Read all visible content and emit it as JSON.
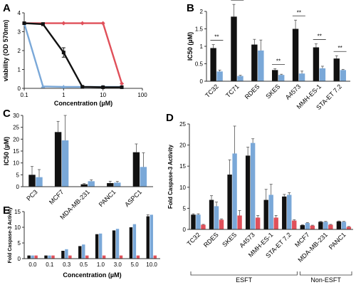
{
  "colors": {
    "black": "#111111",
    "blue": "#7aa8d8",
    "red": "#e0505a",
    "axis": "#333333",
    "errbar": "#555555"
  },
  "chart_data": [
    {
      "panel": "A",
      "type": "line",
      "xscale": "log",
      "xlabel": "Concentration (µM)",
      "ylabel": "viability (OD 570nm)",
      "xlim": [
        0.1,
        100
      ],
      "ylim": [
        0,
        4
      ],
      "xticks": [
        0.1,
        1,
        10,
        100
      ],
      "xtick_labels": [
        "0.1",
        "1",
        "10",
        "100"
      ],
      "yticks": [
        0,
        1,
        2,
        3,
        4
      ],
      "series": [
        {
          "color": "red",
          "x": [
            0.1,
            1,
            3,
            10,
            30
          ],
          "y": [
            3.45,
            3.45,
            3.45,
            3.45,
            0.25
          ],
          "marker": "diamond"
        },
        {
          "color": "blue",
          "x": [
            0.1,
            0.3,
            1,
            3,
            10,
            30
          ],
          "y": [
            3.45,
            0.1,
            0.08,
            0.08,
            0.08,
            0.08
          ],
          "marker": "triangle"
        },
        {
          "color": "black",
          "x": [
            0.1,
            0.3,
            1,
            3,
            10,
            30
          ],
          "y": [
            3.45,
            3.4,
            1.9,
            0.08,
            0.06,
            0.06
          ],
          "err": [
            0.05,
            0.08,
            0.25,
            0.05,
            0.03,
            0.03
          ],
          "marker": "square"
        }
      ]
    },
    {
      "panel": "B",
      "type": "bar",
      "ylabel": "IC50 (µM)",
      "ylim": [
        0,
        2
      ],
      "yticks": [
        0,
        0.5,
        1,
        1.5,
        2
      ],
      "ytick_labels": [
        "0",
        "0.5",
        "1",
        "1.5",
        "2"
      ],
      "categories": [
        "TC32",
        "TC71",
        "RDES",
        "SKES",
        "A4573",
        "MMH-ES-1",
        "STA-ET 7.2"
      ],
      "series": [
        {
          "color": "black",
          "values": [
            0.95,
            1.85,
            1.05,
            0.32,
            1.5,
            0.97,
            0.65
          ],
          "err": [
            0.1,
            0.35,
            0.15,
            0.04,
            0.25,
            0.1,
            0.08
          ]
        },
        {
          "color": "blue",
          "values": [
            0.28,
            0.15,
            0.88,
            0.18,
            0.22,
            0.37,
            0.32
          ],
          "err": [
            0.04,
            0.02,
            0.3,
            0.02,
            0.07,
            0.06,
            0.02
          ]
        }
      ],
      "significance": [
        "**",
        "**",
        "",
        "**",
        "**",
        "**",
        "**"
      ]
    },
    {
      "panel": "C",
      "type": "bar",
      "ylabel": "IC50 (µM)",
      "ylim": [
        0,
        30
      ],
      "yticks": [
        0,
        5,
        10,
        15,
        20,
        25,
        30
      ],
      "categories": [
        "PC3",
        "MCF7",
        "MDA-MB-231",
        "PANC1",
        "ASPC1"
      ],
      "series": [
        {
          "color": "black",
          "values": [
            5,
            23,
            1,
            1.5,
            14.5
          ],
          "err": [
            3.5,
            4.5,
            0.3,
            0.8,
            3.5
          ]
        },
        {
          "color": "blue",
          "values": [
            4,
            19.5,
            2.3,
            1.7,
            8.3
          ],
          "err": [
            3.2,
            10.5,
            0.6,
            0.5,
            6
          ]
        }
      ]
    },
    {
      "panel": "D",
      "type": "bar",
      "ylabel": "Fold Caspase-3 Activity",
      "ylim": [
        0,
        25
      ],
      "yticks": [
        0,
        5,
        10,
        15,
        20,
        25
      ],
      "categories": [
        "TC32",
        "RDES",
        "SKES",
        "A4573",
        "MMH-ES-1",
        "STA-ET 7.2",
        "MCF7",
        "MDA-MB-231",
        "PANC1"
      ],
      "series": [
        {
          "color": "black",
          "values": [
            3.5,
            7,
            13,
            17.5,
            7,
            7.8,
            1,
            1.8,
            1.9
          ],
          "err": [
            0.2,
            1,
            3.5,
            2,
            2.5,
            0.5,
            0.1,
            0.1,
            0.1
          ]
        },
        {
          "color": "blue",
          "values": [
            3.5,
            5.5,
            18,
            20.5,
            8.2,
            8.2,
            1.5,
            1.8,
            1.8
          ],
          "err": [
            0.2,
            1,
            6.5,
            1,
            2.5,
            0.5,
            0.1,
            0.1,
            0.1
          ]
        },
        {
          "color": "red",
          "values": [
            1.1,
            2.3,
            3.3,
            2.8,
            2.8,
            2.1,
            0.9,
            1.1,
            0.6
          ],
          "err": [
            0.1,
            0.2,
            1.2,
            0.5,
            0.5,
            0.2,
            0.1,
            0.1,
            0.1
          ]
        }
      ],
      "groups": [
        {
          "label": "ESFT",
          "from": 0,
          "to": 5
        },
        {
          "label": "Non-ESFT",
          "from": 6,
          "to": 8
        }
      ]
    },
    {
      "panel": "E",
      "type": "bar",
      "xlabel": "Concentration (µM)",
      "ylabel": "Fold Caspase-3 Activity",
      "ylim": [
        0,
        15
      ],
      "yticks": [
        0,
        5,
        10,
        15
      ],
      "categories": [
        "0.0",
        "0.1",
        "0.3",
        "0.5",
        "1.0",
        "3.0",
        "5.0",
        "10.0"
      ],
      "series": [
        {
          "color": "black",
          "values": [
            1,
            1,
            2.5,
            4,
            7.8,
            9,
            10,
            13.5
          ],
          "err": [
            0,
            0,
            0,
            0,
            0,
            0,
            0,
            0.5
          ]
        },
        {
          "color": "blue",
          "values": [
            1,
            1,
            3,
            4.5,
            8,
            9.5,
            11,
            14
          ],
          "err": [
            0,
            0,
            0,
            0,
            0,
            0,
            0,
            0
          ]
        },
        {
          "color": "red",
          "values": [
            1,
            1,
            1,
            1,
            1,
            1,
            1,
            1
          ],
          "err": [
            0,
            0,
            0,
            0,
            0,
            0,
            0,
            0
          ]
        }
      ]
    }
  ],
  "panel_labels": [
    "A",
    "B",
    "C",
    "D",
    "E"
  ]
}
